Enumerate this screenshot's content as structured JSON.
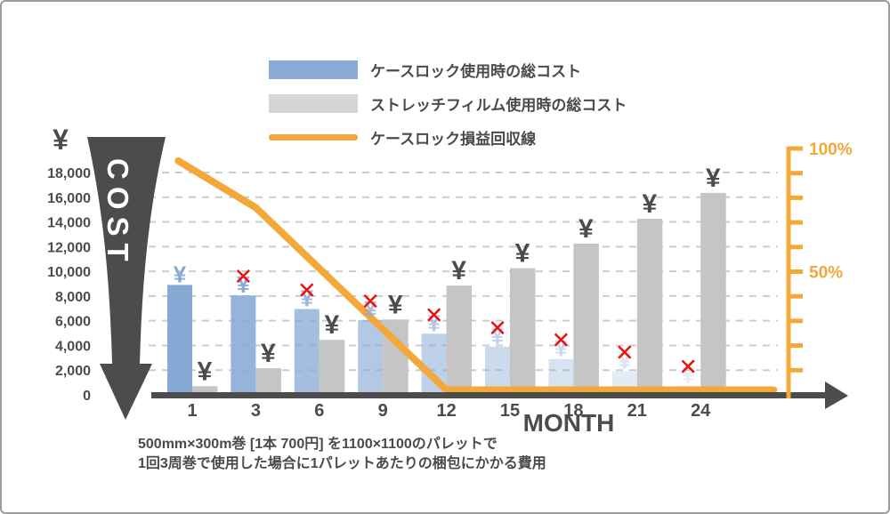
{
  "frame": {
    "background": "#ffffff",
    "border_color": "#9c9c9c"
  },
  "colors": {
    "dark": "#4c4c4c",
    "grid": "#cccccc",
    "accent_orange": "#f3a93a",
    "caselock_blue": "#87a9d6",
    "film_gray": "#c5c5c5",
    "cross_red": "#e8150f",
    "white": "#ffffff"
  },
  "legend": {
    "items": [
      {
        "label": "ケースロック使用時の総コスト",
        "swatch": "bar",
        "color": "#8aabd7"
      },
      {
        "label": "ストレッチフィルム使用時の総コスト",
        "swatch": "bar",
        "color": "#d6d6d6"
      },
      {
        "label": "ケースロック損益回収線",
        "swatch": "line",
        "color": "#f3a93a"
      }
    ]
  },
  "caption": {
    "line1": "500mm×300m巻 [1本 700円] を1100×1100のパレットで",
    "line2": "1回3周巻で使用した場合に1パレットあたりの梱包にかかる費用"
  },
  "chart_data": {
    "type": "bar",
    "combo": "bar+line",
    "x_axis": {
      "label": "MONTH",
      "categories": [
        "1",
        "3",
        "6",
        "9",
        "12",
        "15",
        "18",
        "21",
        "24"
      ]
    },
    "y_axis_left": {
      "unit": "¥",
      "arrow_label": "COST",
      "min": 0,
      "max": 18000,
      "tick_step": 2000,
      "tick_labels": [
        "18,000",
        "16,000",
        "14,000",
        "12,000",
        "10,000",
        "8,000",
        "6,000",
        "4,000",
        "2,000",
        "0"
      ]
    },
    "y_axis_right": {
      "unit": "%",
      "min": 0,
      "max": 100,
      "tick_step": 10,
      "labeled_ticks": [
        {
          "pct": 100,
          "label": "100%"
        },
        {
          "pct": 50,
          "label": "50%"
        }
      ]
    },
    "series": [
      {
        "name": "ケースロック使用時の総コスト",
        "type": "bar",
        "axis": "left",
        "values": [
          8900,
          8050,
          6950,
          6050,
          4950,
          3900,
          2900,
          1900,
          750
        ],
        "color": "#87a9d6",
        "fade_opacity": [
          1,
          0.88,
          0.76,
          0.64,
          0.53,
          0.43,
          0.33,
          0.23,
          0.14
        ],
        "marker": {
          "symbol": "¥",
          "crossed_out_from_index": 1,
          "cross_symbol": "✕",
          "cross_color": "#e8150f"
        }
      },
      {
        "name": "ストレッチフィルム使用時の総コスト",
        "type": "bar",
        "axis": "left",
        "values": [
          700,
          2150,
          4450,
          6100,
          8850,
          10250,
          12250,
          14250,
          16350
        ],
        "color": "#c5c5c5",
        "marker": {
          "symbol": "¥",
          "color": "#4c4c4c"
        }
      },
      {
        "name": "ケースロック損益回収線",
        "type": "line",
        "axis": "right",
        "color": "#f3a93a",
        "pct_by_month": {
          "1": 92,
          "3": 76,
          "6": 52,
          "9": 27,
          "12": 0,
          "15": 0,
          "18": 0,
          "21": 0,
          "24": 0
        },
        "draw_points": [
          {
            "cat": -0.22,
            "pct": 95
          },
          {
            "cat": 1,
            "pct": 76
          },
          {
            "cat": 4,
            "pct": 2
          },
          {
            "cat": 9.15,
            "pct": 2
          }
        ]
      }
    ],
    "grid": {
      "horizontal": true,
      "style": "dashed"
    }
  }
}
